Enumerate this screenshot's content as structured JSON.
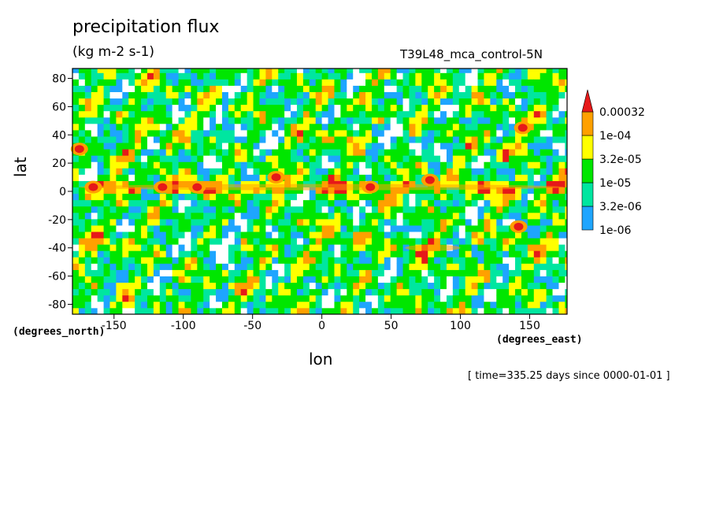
{
  "header": {
    "title": "precipitation flux",
    "units": "(kg m-2 s-1)",
    "run_name": "T39L48_mca_control-5N",
    "timestamp": "[ time=335.25 days since 0000-01-01 ]"
  },
  "chart_data": {
    "type": "heatmap",
    "title": "precipitation flux",
    "xlabel": "lon",
    "ylabel": "lat",
    "x_unit": "(degrees_east)",
    "y_unit": "(degrees_north)",
    "xlim": [
      -180,
      177
    ],
    "ylim": [
      -87,
      87
    ],
    "x_ticks": [
      -150,
      -100,
      -50,
      0,
      50,
      100,
      150
    ],
    "y_ticks": [
      -80,
      -60,
      -40,
      -20,
      0,
      20,
      40,
      60,
      80
    ],
    "colorbar": {
      "labels": [
        "0.00032",
        "1e-04",
        "3.2e-05",
        "1e-05",
        "3.2e-06",
        "1e-06"
      ],
      "bands": [
        {
          "lower": "1e-06",
          "upper": "3.2e-06",
          "color": "#1ea5ff"
        },
        {
          "lower": "3.2e-06",
          "upper": "1e-05",
          "color": "#00e6a0"
        },
        {
          "lower": "1e-05",
          "upper": "3.2e-05",
          "color": "#00e600"
        },
        {
          "lower": "3.2e-05",
          "upper": "1e-04",
          "color": "#ffff00"
        },
        {
          "lower": "1e-04",
          "upper": "0.00032",
          "color": "#ffa000"
        },
        {
          "lower": "0.00032",
          "upper": null,
          "color": "#e61919"
        }
      ]
    },
    "background_level_color": "#00e600",
    "features": [
      {
        "region": "equatorial band",
        "lat": 3,
        "lon_range": [
          -175,
          175
        ],
        "level": "1e-04 to 0.00032",
        "color": "#ffa000"
      },
      {
        "region": "hotspot",
        "lat": 3,
        "lon": -165,
        "level": ">0.00032",
        "color": "#e61919"
      },
      {
        "region": "hotspot",
        "lat": 3,
        "lon": -115,
        "level": ">0.00032",
        "color": "#e61919"
      },
      {
        "region": "hotspot",
        "lat": 3,
        "lon": -90,
        "level": ">0.00032",
        "color": "#e61919"
      },
      {
        "region": "hotspot",
        "lat": 10,
        "lon": -33,
        "level": ">0.00032",
        "color": "#e61919"
      },
      {
        "region": "hotspot",
        "lat": 3,
        "lon": 35,
        "level": ">0.00032",
        "color": "#e61919"
      },
      {
        "region": "hotspot",
        "lat": 8,
        "lon": 78,
        "level": ">0.00032",
        "color": "#e61919"
      },
      {
        "region": "hotspot",
        "lat": 30,
        "lon": -175,
        "level": ">0.00032",
        "color": "#e61919"
      },
      {
        "region": "hotspot",
        "lat": 45,
        "lon": 145,
        "level": ">0.00032",
        "color": "#e61919"
      },
      {
        "region": "hotspot",
        "lat": -25,
        "lon": 142,
        "level": ">0.00032",
        "color": "#e61919"
      },
      {
        "region": "southern arc",
        "lat": -40,
        "lon_range": [
          60,
          100
        ],
        "level": "1e-04 to 0.00032",
        "color": "#ffa000"
      }
    ]
  }
}
